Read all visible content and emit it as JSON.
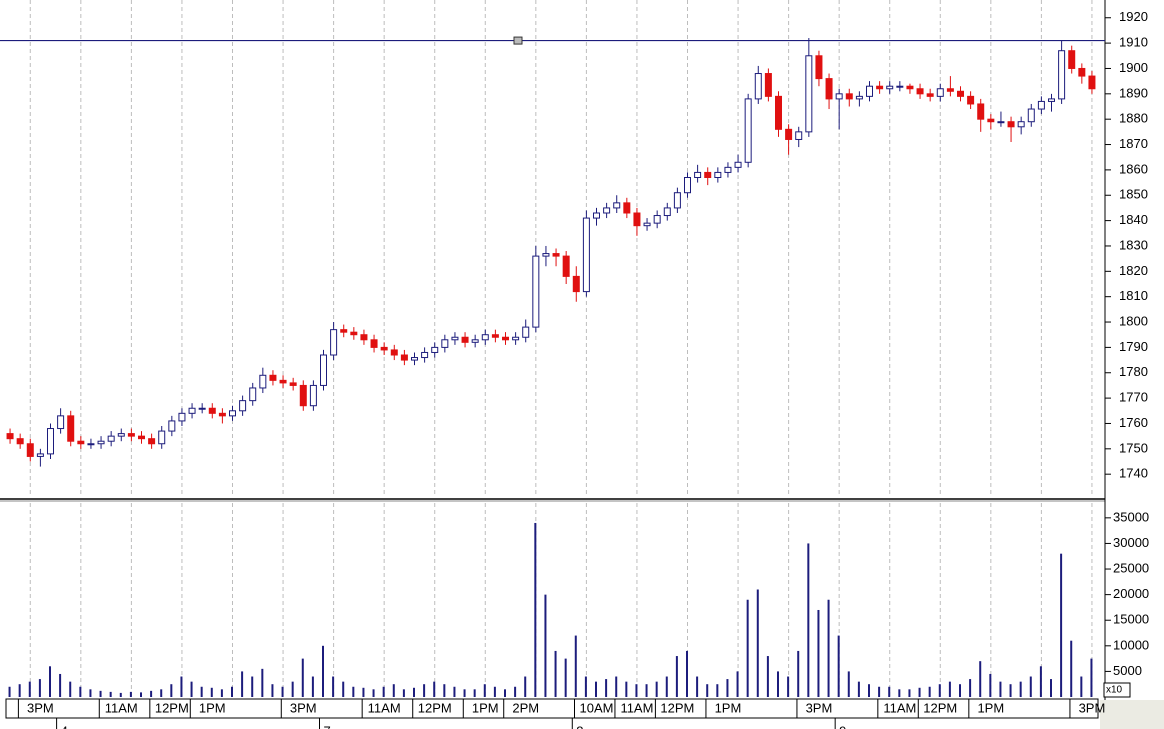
{
  "chart_data": {
    "type": "candlestick",
    "categories": [
      null,
      null,
      null,
      "3PM",
      null,
      null,
      null,
      null,
      null,
      null,
      null,
      "11AM",
      null,
      null,
      null,
      null,
      "12PM",
      null,
      null,
      null,
      "1PM",
      null,
      null,
      null,
      null,
      null,
      null,
      null,
      null,
      "3PM",
      null,
      null,
      null,
      null,
      null,
      null,
      null,
      "11AM",
      null,
      null,
      null,
      null,
      "12PM",
      null,
      null,
      null,
      null,
      "1PM",
      null,
      null,
      null,
      "2PM",
      null,
      null,
      null,
      null,
      null,
      null,
      "10AM",
      null,
      null,
      null,
      "11AM",
      null,
      null,
      null,
      "12PM",
      null,
      null,
      null,
      null,
      "1PM",
      null,
      null,
      null,
      null,
      null,
      null,
      null,
      null,
      "3PM",
      null,
      null,
      null,
      null,
      null,
      null,
      null,
      "11AM",
      null,
      null,
      null,
      "12PM",
      null,
      null,
      null,
      null,
      "1PM",
      null,
      null,
      null,
      null,
      null,
      null,
      null,
      null,
      null,
      "3PM"
    ],
    "date_labels": [
      null,
      null,
      null,
      null,
      null,
      "4",
      null,
      null,
      null,
      null,
      null,
      null,
      null,
      null,
      null,
      null,
      null,
      null,
      null,
      null,
      null,
      null,
      null,
      null,
      null,
      null,
      null,
      null,
      null,
      null,
      null,
      "7",
      null,
      null,
      null,
      null,
      null,
      null,
      null,
      null,
      null,
      null,
      null,
      null,
      null,
      null,
      null,
      null,
      null,
      null,
      null,
      null,
      null,
      null,
      null,
      null,
      "8",
      null,
      null,
      null,
      null,
      null,
      null,
      null,
      null,
      null,
      null,
      null,
      null,
      null,
      null,
      null,
      null,
      null,
      null,
      null,
      null,
      null,
      null,
      null,
      null,
      null,
      "9",
      null,
      null,
      null,
      null,
      null,
      null,
      null,
      null,
      null,
      null,
      null,
      null,
      null,
      null,
      null,
      null,
      null,
      null,
      null,
      null,
      null,
      null,
      null,
      null,
      null
    ],
    "open": [
      1756,
      1754,
      1752,
      1747,
      1748,
      1758,
      1763,
      1753,
      1752,
      1752,
      1753,
      1755,
      1756,
      1755,
      1754,
      1752,
      1757,
      1761,
      1764,
      1766,
      1766,
      1764,
      1763,
      1765,
      1769,
      1774,
      1779,
      1777,
      1776,
      1775,
      1767,
      1775,
      1787,
      1797,
      1796,
      1795,
      1793,
      1790,
      1789,
      1787,
      1785,
      1786,
      1788,
      1790,
      1793,
      1794,
      1792,
      1793,
      1795,
      1794,
      1793,
      1794,
      1798,
      1826,
      1827,
      1826,
      1818,
      1812,
      1841,
      1843,
      1845,
      1847,
      1843,
      1838,
      1839,
      1842,
      1845,
      1851,
      1857,
      1859,
      1857,
      1859,
      1861,
      1863,
      1888,
      1898,
      1889,
      1876,
      1872,
      1875,
      1905,
      1896,
      1888,
      1890,
      1888,
      1889,
      1893,
      1892,
      1893,
      1893,
      1892,
      1890,
      1889,
      1892,
      1891,
      1889,
      1886,
      1880,
      1879,
      1879,
      1877,
      1879,
      1884,
      1887,
      1888,
      1907,
      1900,
      1897
    ],
    "high": [
      1758,
      1756,
      1754,
      1750,
      1760,
      1766,
      1765,
      1755,
      1754,
      1755,
      1757,
      1758,
      1758,
      1757,
      1756,
      1759,
      1763,
      1766,
      1768,
      1768,
      1768,
      1766,
      1767,
      1771,
      1776,
      1782,
      1781,
      1779,
      1778,
      1777,
      1777,
      1789,
      1800,
      1799,
      1798,
      1797,
      1795,
      1792,
      1791,
      1789,
      1788,
      1790,
      1792,
      1795,
      1796,
      1796,
      1795,
      1797,
      1797,
      1796,
      1796,
      1801,
      1830,
      1830,
      1829,
      1828,
      1822,
      1844,
      1845,
      1847,
      1850,
      1849,
      1845,
      1841,
      1844,
      1847,
      1853,
      1859,
      1862,
      1861,
      1861,
      1863,
      1866,
      1890,
      1901,
      1900,
      1891,
      1878,
      1877,
      1912,
      1907,
      1898,
      1892,
      1892,
      1891,
      1895,
      1895,
      1895,
      1895,
      1894,
      1894,
      1892,
      1894,
      1897,
      1893,
      1891,
      1888,
      1882,
      1883,
      1881,
      1881,
      1886,
      1889,
      1890,
      1911,
      1909,
      1902,
      1899
    ],
    "low": [
      1752,
      1750,
      1745,
      1743,
      1746,
      1756,
      1751,
      1750,
      1750,
      1750,
      1751,
      1753,
      1753,
      1752,
      1750,
      1750,
      1755,
      1759,
      1762,
      1764,
      1762,
      1760,
      1761,
      1763,
      1767,
      1772,
      1775,
      1774,
      1773,
      1765,
      1765,
      1773,
      1785,
      1794,
      1793,
      1791,
      1788,
      1787,
      1785,
      1783,
      1783,
      1784,
      1786,
      1788,
      1791,
      1790,
      1790,
      1791,
      1792,
      1791,
      1791,
      1792,
      1796,
      1822,
      1822,
      1815,
      1808,
      1810,
      1838,
      1841,
      1843,
      1841,
      1834,
      1836,
      1837,
      1840,
      1843,
      1849,
      1855,
      1854,
      1855,
      1857,
      1859,
      1861,
      1886,
      1887,
      1873,
      1866,
      1869,
      1873,
      1893,
      1884,
      1876,
      1885,
      1885,
      1887,
      1890,
      1890,
      1891,
      1890,
      1888,
      1887,
      1887,
      1889,
      1887,
      1884,
      1875,
      1876,
      1877,
      1871,
      1874,
      1877,
      1882,
      1883,
      1886,
      1898,
      1894,
      1890
    ],
    "close": [
      1754,
      1752,
      1747,
      1748,
      1758,
      1763,
      1753,
      1752,
      1752,
      1753,
      1755,
      1756,
      1755,
      1754,
      1752,
      1757,
      1761,
      1764,
      1766,
      1766,
      1764,
      1763,
      1765,
      1769,
      1774,
      1779,
      1777,
      1776,
      1775,
      1767,
      1775,
      1787,
      1797,
      1796,
      1795,
      1793,
      1790,
      1789,
      1787,
      1785,
      1786,
      1788,
      1790,
      1793,
      1794,
      1792,
      1793,
      1795,
      1794,
      1793,
      1794,
      1798,
      1826,
      1827,
      1826,
      1818,
      1812,
      1841,
      1843,
      1845,
      1847,
      1843,
      1838,
      1839,
      1842,
      1845,
      1851,
      1857,
      1859,
      1857,
      1859,
      1861,
      1863,
      1888,
      1898,
      1889,
      1876,
      1872,
      1875,
      1905,
      1896,
      1888,
      1890,
      1888,
      1889,
      1893,
      1892,
      1893,
      1893,
      1892,
      1890,
      1889,
      1892,
      1891,
      1889,
      1886,
      1880,
      1879,
      1879,
      1877,
      1879,
      1884,
      1887,
      1888,
      1907,
      1900,
      1897,
      1892
    ],
    "volume": [
      2000,
      2500,
      3000,
      3500,
      6000,
      4500,
      3000,
      2000,
      1500,
      1200,
      1000,
      800,
      1000,
      900,
      1200,
      1500,
      2500,
      4000,
      3000,
      2000,
      1800,
      1500,
      2000,
      5000,
      4000,
      5500,
      2500,
      2000,
      3000,
      7500,
      4000,
      10000,
      4000,
      3000,
      2000,
      1800,
      1500,
      2000,
      2500,
      1500,
      1800,
      2500,
      3000,
      2500,
      2000,
      1500,
      1500,
      2500,
      2000,
      1500,
      2000,
      4000,
      34000,
      20000,
      9000,
      7500,
      12000,
      4000,
      3000,
      3500,
      4000,
      3000,
      2500,
      2500,
      3000,
      4000,
      8000,
      9000,
      4000,
      2500,
      2500,
      3500,
      5000,
      19000,
      21000,
      8000,
      5000,
      4000,
      9000,
      30000,
      17000,
      19000,
      12000,
      5000,
      3000,
      2500,
      2000,
      2000,
      1500,
      1500,
      1800,
      2000,
      2500,
      3000,
      2500,
      3500,
      7000,
      4500,
      3000,
      2500,
      3000,
      4000,
      6000,
      3500,
      28000,
      11000,
      4000,
      7500
    ],
    "up_color": "#1c1c7c",
    "down_color": "#e01010",
    "volume_color": "#1c1c7c",
    "ylim": [
      1731,
      1927
    ],
    "yticks": [
      1740,
      1750,
      1760,
      1770,
      1780,
      1790,
      1800,
      1810,
      1820,
      1830,
      1840,
      1850,
      1860,
      1870,
      1880,
      1890,
      1900,
      1910,
      1920
    ],
    "hline": 1911,
    "volume_ylim": [
      0,
      37900
    ],
    "volume_yticks": [
      5000,
      10000,
      15000,
      20000,
      25000,
      30000,
      35000
    ],
    "volume_multiplier_label": "x10",
    "grid": true
  }
}
